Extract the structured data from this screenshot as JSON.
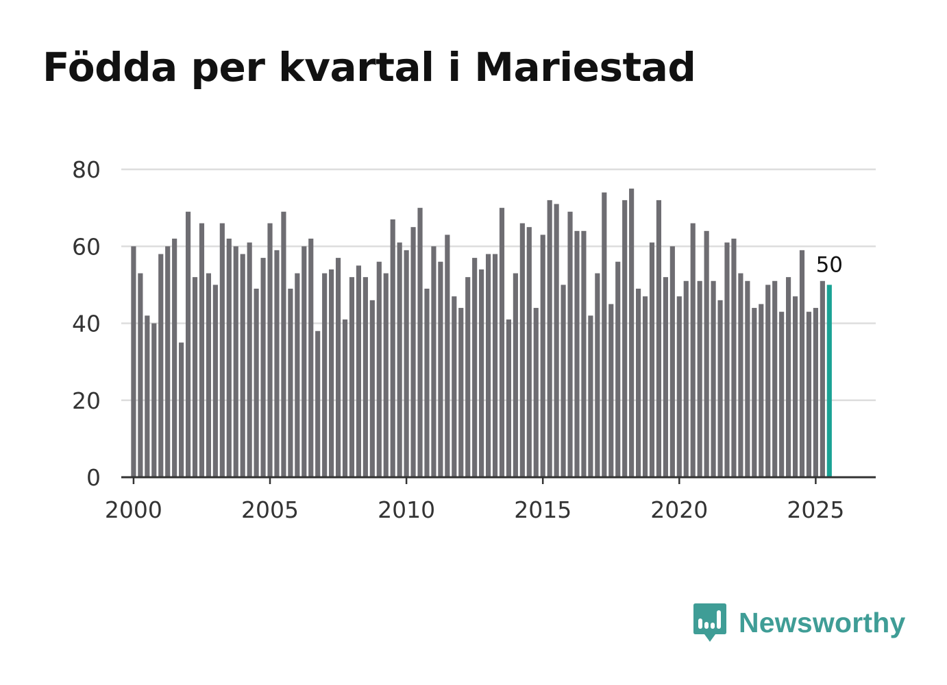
{
  "title": "Födda per kvartal i Mariestad",
  "brand": {
    "name": "Newsworthy",
    "icon": "newsworthy-logo-icon",
    "color": "#3f9d96"
  },
  "colors": {
    "bar": "#6e6d72",
    "highlight": "#1aa294",
    "grid": "#dddddd",
    "axis": "#333333",
    "text": "#333333"
  },
  "chart_data": {
    "type": "bar",
    "title": "Födda per kvartal i Mariestad",
    "xlabel": "",
    "ylabel": "",
    "ylim": [
      0,
      80
    ],
    "yticks": [
      0,
      20,
      40,
      60,
      80
    ],
    "xlim": [
      1999.55,
      2027.2
    ],
    "xticks": [
      2000,
      2005,
      2010,
      2015,
      2020,
      2025
    ],
    "xtick_labels": [
      "2000",
      "2005",
      "2010",
      "2015",
      "2020",
      "2025"
    ],
    "grid": true,
    "start_year": 2000,
    "quarters_per_year": 4,
    "highlight_index": 102,
    "highlight_label": "50",
    "values": [
      60,
      53,
      42,
      40,
      58,
      60,
      62,
      35,
      69,
      52,
      66,
      53,
      50,
      66,
      62,
      60,
      58,
      61,
      49,
      57,
      66,
      59,
      69,
      49,
      53,
      60,
      62,
      38,
      53,
      54,
      57,
      41,
      52,
      55,
      52,
      46,
      56,
      53,
      67,
      61,
      59,
      65,
      70,
      49,
      60,
      56,
      63,
      47,
      44,
      52,
      57,
      54,
      58,
      58,
      70,
      41,
      53,
      66,
      65,
      44,
      63,
      72,
      71,
      50,
      69,
      64,
      64,
      42,
      53,
      74,
      45,
      56,
      72,
      75,
      49,
      47,
      61,
      72,
      52,
      60,
      47,
      51,
      66,
      51,
      64,
      51,
      46,
      61,
      62,
      53,
      51,
      44,
      45,
      50,
      51,
      43,
      52,
      47,
      59,
      43,
      44,
      51,
      50
    ]
  }
}
